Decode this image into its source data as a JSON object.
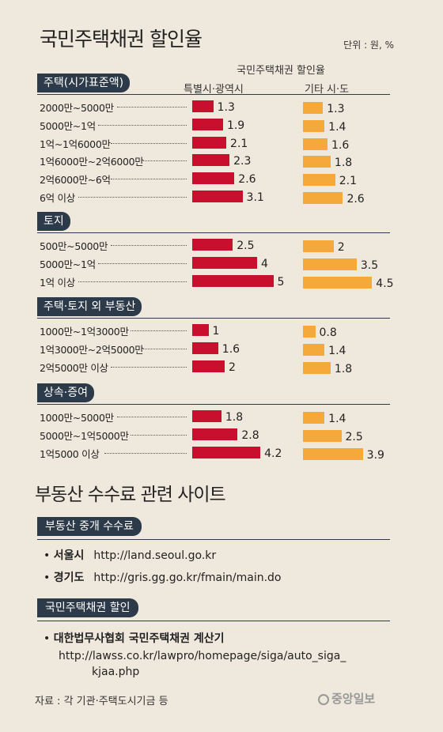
{
  "header": {
    "title": "국민주택채권 할인율",
    "unit": "단위 : 원, %",
    "col_group": "국민주택채권 할인율",
    "col_a": "특별시·광역시",
    "col_b": "기타 시·도"
  },
  "colors": {
    "special": "#c8102e",
    "other": "#f6a93b",
    "header_bg": "#2d3a4a"
  },
  "chart_data": {
    "type": "bar",
    "series_names": [
      "특별시·광역시",
      "기타 시·도"
    ],
    "xlim": [
      0,
      5
    ],
    "sections": [
      {
        "name": "주택(시가표준액)",
        "rows": [
          {
            "label": "2000만~5000만",
            "a": 1.3,
            "b": 1.3
          },
          {
            "label": "5000만~1억",
            "a": 1.9,
            "b": 1.4
          },
          {
            "label": "1억~1억6000만",
            "a": 2.1,
            "b": 1.6
          },
          {
            "label": "1억6000만~2억6000만",
            "a": 2.3,
            "b": 1.8
          },
          {
            "label": "2억6000만~6억",
            "a": 2.6,
            "b": 2.1
          },
          {
            "label": "6억 이상",
            "a": 3.1,
            "b": 2.6
          }
        ]
      },
      {
        "name": "토지",
        "rows": [
          {
            "label": "500만~5000만",
            "a": 2.5,
            "b": 2
          },
          {
            "label": "5000만~1억",
            "a": 4,
            "b": 3.5
          },
          {
            "label": "1억 이상",
            "a": 5,
            "b": 4.5
          }
        ]
      },
      {
        "name": "주택·토지 외 부동산",
        "rows": [
          {
            "label": "1000만~1억3000만",
            "a": 1,
            "b": 0.8
          },
          {
            "label": "1억3000만~2억5000만",
            "a": 1.6,
            "b": 1.4
          },
          {
            "label": "2억5000만 이상",
            "a": 2,
            "b": 1.8
          }
        ]
      },
      {
        "name": "상속·증여",
        "rows": [
          {
            "label": "1000만~5000만",
            "a": 1.8,
            "b": 1.4
          },
          {
            "label": "5000만~1억5000만",
            "a": 2.8,
            "b": 2.5
          },
          {
            "label": "1억5000 이상",
            "a": 4.2,
            "b": 3.9
          }
        ]
      }
    ]
  },
  "sites": {
    "title": "부동산 수수료 관련 사이트",
    "group1": {
      "heading": "부동산 중개 수수료",
      "items": [
        {
          "name": "서울시",
          "url": "http://land.seoul.go.kr"
        },
        {
          "name": "경기도",
          "url": "http://gris.gg.go.kr/fmain/main.do"
        }
      ]
    },
    "group2": {
      "heading": "국민주택채권 할인",
      "item_name": "대한법무사협회 국민주택채권 계산기",
      "url_line1": "http://lawss.co.kr/lawpro/homepage/siga/auto_siga_",
      "url_line2": "kjaa.php"
    }
  },
  "footer": {
    "source": "자료 : 각 기관·주택도시기금 등",
    "brand": "중앙일보"
  }
}
